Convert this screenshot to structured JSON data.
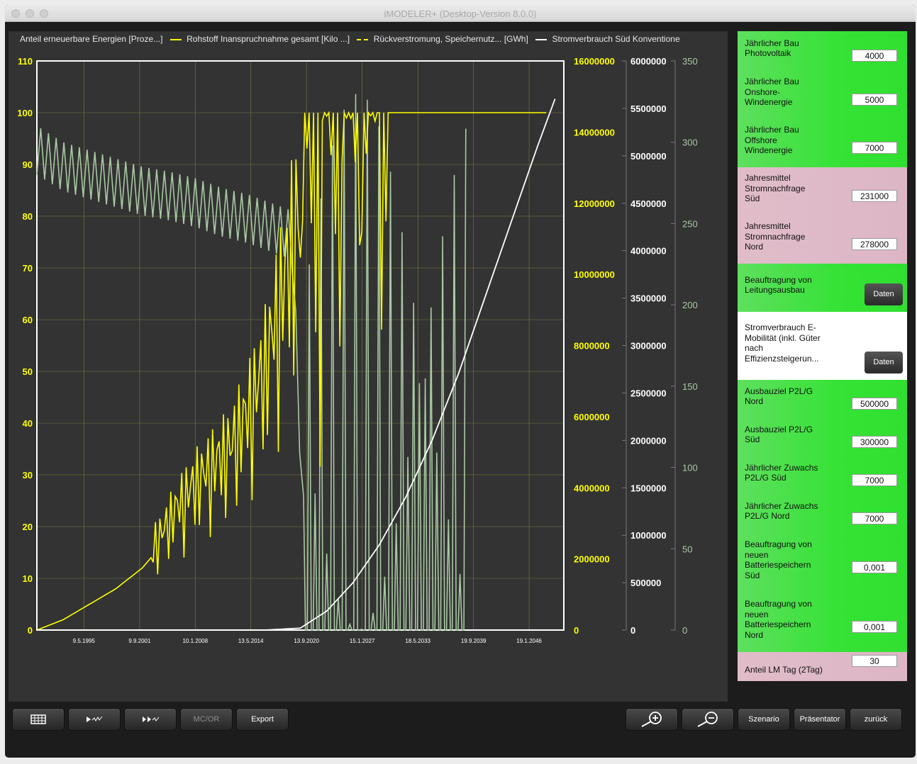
{
  "window": {
    "title": "iMODELER+ (Desktop-Version 8.0.0)"
  },
  "legend": {
    "s1": "Anteil erneuerbare Energien [Proze...]",
    "s2": "Rohstoff Inanspruchnahme gesamt [Kilo ...]",
    "s3": "Rückverstromung, Speichernutz... [GWh]",
    "s4": "Stromverbrauch Süd Konventione"
  },
  "colors": {
    "background": "#333333",
    "yellow": "#ffff00",
    "sage": "#a9c9a4",
    "white": "#ffffff"
  },
  "chart_data": {
    "type": "line",
    "x_ticks": [
      "9.5.1995",
      "9.9.2001",
      "10.1.2008",
      "13.5.2014",
      "13.9.2020",
      "15.1.2027",
      "18.5.2033",
      "19.9.2039",
      "19.1.2046"
    ],
    "axes": {
      "y1": {
        "ticks": [
          "0",
          "10",
          "20",
          "30",
          "40",
          "50",
          "60",
          "70",
          "80",
          "90",
          "100",
          "110"
        ],
        "ylim": [
          0,
          110
        ]
      },
      "y2": {
        "ticks": [
          "0",
          "2000000",
          "4000000",
          "6000000",
          "8000000",
          "10000000",
          "12000000",
          "14000000",
          "16000000"
        ],
        "ylim": [
          0,
          16000000
        ]
      },
      "y3": {
        "ticks": [
          "0",
          "500000",
          "1000000",
          "1500000",
          "2000000",
          "2500000",
          "3000000",
          "3500000",
          "4000000",
          "4500000",
          "5000000",
          "5500000",
          "6000000"
        ],
        "ylim": [
          0,
          6000000
        ]
      },
      "y4": {
        "ticks": [
          "0",
          "50",
          "100",
          "150",
          "200",
          "250",
          "300",
          "350"
        ],
        "ylim": [
          0,
          350
        ]
      }
    },
    "series": [
      {
        "name": "Anteil erneuerbare Energien [Proze...]",
        "axis": "y1",
        "color": "#ffff00",
        "x": [
          1990,
          1993,
          1996,
          1999,
          2002,
          2004,
          2006,
          2008,
          2010,
          2012,
          2014,
          2016,
          2018,
          2020,
          2021,
          2022,
          2023,
          2024,
          2025,
          2026,
          2027,
          2028,
          2029,
          2030,
          2033,
          2036,
          2039,
          2042,
          2045,
          2048
        ],
        "y": [
          0,
          2,
          5,
          8,
          12,
          16,
          21,
          25,
          28,
          31,
          37,
          45,
          58,
          72,
          100,
          55,
          100,
          40,
          100,
          30,
          100,
          100,
          100,
          100,
          100,
          100,
          100,
          100,
          100,
          100
        ]
      },
      {
        "name": "Rückverstromung, Speichernutz... [GWh]",
        "axis": "y4",
        "color": "#a9c9a4",
        "x": [
          1990,
          1993,
          1996,
          1999,
          2002,
          2005,
          2008,
          2011,
          2014,
          2017,
          2019,
          2021,
          2023,
          2025,
          2027,
          2030,
          2033,
          2036,
          2039
        ],
        "y": [
          310,
          300,
          295,
          290,
          285,
          282,
          278,
          272,
          268,
          262,
          258,
          0,
          0,
          0,
          0,
          0,
          0,
          0,
          0
        ]
      },
      {
        "name": "Stromverbrauch Süd Konventione",
        "axis": "y3",
        "color": "#ffffff",
        "x": [
          1990,
          2000,
          2010,
          2016,
          2020,
          2023,
          2026,
          2029,
          2032,
          2035,
          2038,
          2041,
          2044,
          2047,
          2049
        ],
        "y": [
          0,
          0,
          0,
          0,
          20000,
          200000,
          500000,
          900000,
          1400000,
          2000000,
          2700000,
          3500000,
          4300000,
          5100000,
          5600000
        ]
      }
    ]
  },
  "panel": {
    "items": [
      {
        "label": "Jährlicher Bau\nPhotovoltaik",
        "value": "4000"
      },
      {
        "label": "Jährlicher Bau\nOnshore-\nWindenergie",
        "value": "5000"
      },
      {
        "label": "Jährlicher Bau\nOffshore\nWindenergie",
        "value": "7000"
      },
      {
        "label": "Jahresmittel\nStromnachfrage\nSüd",
        "value": "231000"
      },
      {
        "label": "Jahresmittel\nStromnachfrage\nNord",
        "value": "278000"
      },
      {
        "label": "Beauftragung von\nLeitungsausbau",
        "button": "Daten"
      },
      {
        "label": "Stromverbrauch E-\nMobilität (inkl. Güter\nnach\nEffizienzsteigerun...",
        "button": "Daten"
      },
      {
        "label": "Ausbauziel P2L/G\nNord",
        "value": "500000"
      },
      {
        "label": "Ausbauziel P2L/G\nSüd",
        "value": "300000"
      },
      {
        "label": "Jährlicher Zuwachs\nP2L/G Süd",
        "value": "7000"
      },
      {
        "label": "Jährlicher Zuwachs\nP2L/G Nord",
        "value": "7000"
      },
      {
        "label": "Beauftragung von\nneuen\nBatteriespeichern\nSüd",
        "value": "0,001"
      },
      {
        "label": "Beauftragung von\nneuen\nBatteriespeichern\nNord",
        "value": "0,001"
      },
      {
        "label": "Anteil LM Tag (2Tag)",
        "value": "30"
      }
    ]
  },
  "toolbar": {
    "mcor": "MC/OR",
    "export": "Export",
    "szenario": "Szenario",
    "praesentator": "Präsentator",
    "zurueck": "zurück"
  }
}
